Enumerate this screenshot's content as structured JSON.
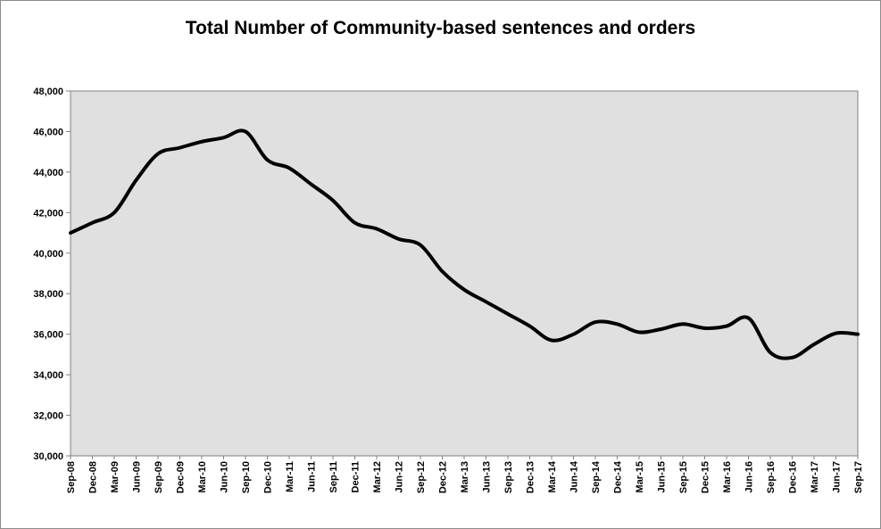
{
  "chart_data": {
    "type": "line",
    "title": "Total Number of Community-based sentences and orders",
    "xlabel": "",
    "ylabel": "",
    "ylim": [
      30000,
      48000
    ],
    "y_ticks": [
      "30,000",
      "32,000",
      "34,000",
      "36,000",
      "38,000",
      "40,000",
      "42,000",
      "44,000",
      "46,000",
      "48,000"
    ],
    "grid": false,
    "legend": "none",
    "categories": [
      "Sep-08",
      "Dec-08",
      "Mar-09",
      "Jun-09",
      "Sep-09",
      "Dec-09",
      "Mar-10",
      "Jun-10",
      "Sep-10",
      "Dec-10",
      "Mar-11",
      "Jun-11",
      "Sep-11",
      "Dec-11",
      "Mar-12",
      "Jun-12",
      "Sep-12",
      "Dec-12",
      "Mar-13",
      "Jun-13",
      "Sep-13",
      "Dec-13",
      "Mar-14",
      "Jun-14",
      "Sep-14",
      "Dec-14",
      "Mar-15",
      "Jun-15",
      "Sep-15",
      "Dec-15",
      "Mar-16",
      "Jun-16",
      "Sep-16",
      "Dec-16",
      "Mar-17",
      "Jun-17",
      "Sep-17"
    ],
    "series": [
      {
        "values": [
          41000,
          41500,
          42000,
          43600,
          44900,
          45200,
          45500,
          45700,
          46000,
          44600,
          44200,
          43400,
          42600,
          41500,
          41200,
          40700,
          40400,
          39100,
          38200,
          37600,
          37000,
          36400,
          35700,
          36000,
          36600,
          36500,
          36100,
          36250,
          36500,
          36300,
          36400,
          36800,
          35100,
          34850,
          35500,
          36050,
          36000
        ]
      }
    ],
    "colors": {
      "line": "#000000",
      "plot_bg": "#e0e0e0",
      "frame": "#8c8c8c"
    }
  }
}
